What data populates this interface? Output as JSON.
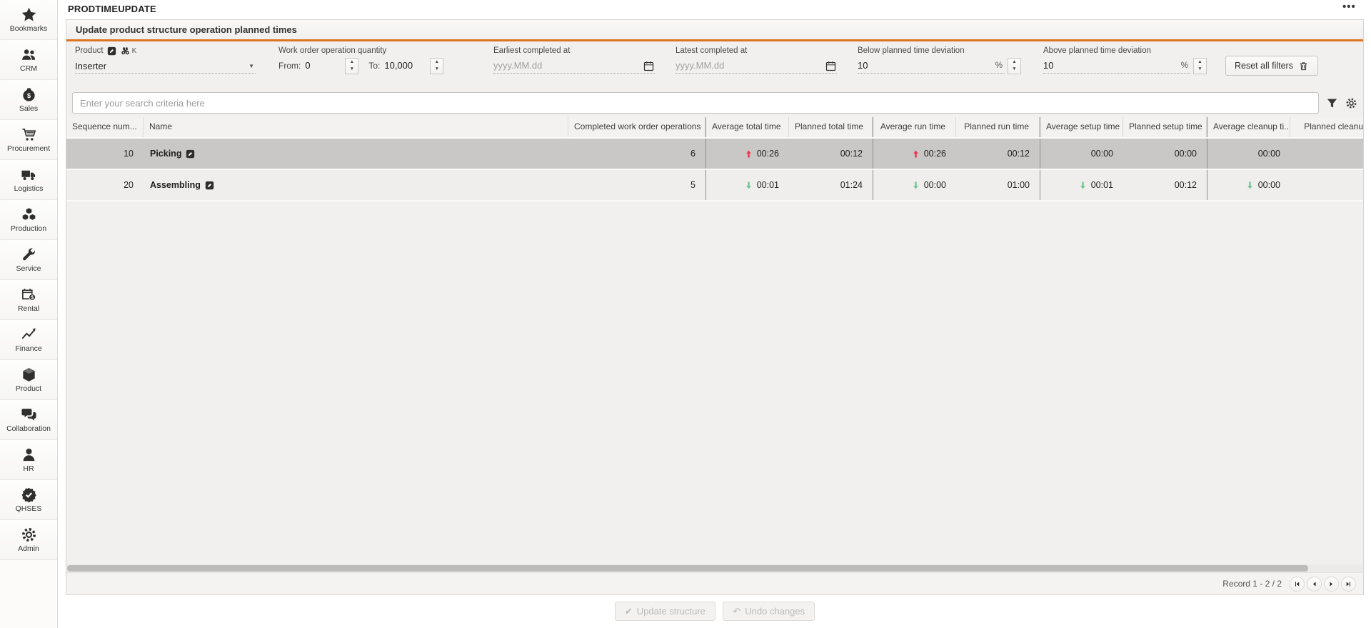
{
  "app": {
    "title": "PRODTIMEUPDATE",
    "window_menu": "•••"
  },
  "panel": {
    "title": "Update product structure operation planned times"
  },
  "sidebar": {
    "items": [
      {
        "label": "Bookmarks",
        "icon": "star"
      },
      {
        "label": "CRM",
        "icon": "people"
      },
      {
        "label": "Sales",
        "icon": "money-bag"
      },
      {
        "label": "Procurement",
        "icon": "cart"
      },
      {
        "label": "Logistics",
        "icon": "truck"
      },
      {
        "label": "Production",
        "icon": "cubes"
      },
      {
        "label": "Service",
        "icon": "wrench"
      },
      {
        "label": "Rental",
        "icon": "calendar-dollar"
      },
      {
        "label": "Finance",
        "icon": "chart-line"
      },
      {
        "label": "Product",
        "icon": "cube"
      },
      {
        "label": "Collaboration",
        "icon": "chat"
      },
      {
        "label": "HR",
        "icon": "person"
      },
      {
        "label": "QHSES",
        "icon": "badge-check"
      },
      {
        "label": "Admin",
        "icon": "gear"
      }
    ]
  },
  "filters": {
    "product": {
      "label": "Product",
      "shortcut": "K",
      "value": "Inserter"
    },
    "quantity": {
      "label": "Work order operation quantity",
      "from_label": "From:",
      "from_value": "0",
      "to_label": "To:",
      "to_value": "10,000"
    },
    "earliest": {
      "label": "Earliest completed at",
      "placeholder": "yyyy.MM.dd"
    },
    "latest": {
      "label": "Latest completed at",
      "placeholder": "yyyy.MM.dd"
    },
    "below_deviation": {
      "label": "Below planned time deviation",
      "value": "10",
      "unit": "%"
    },
    "above_deviation": {
      "label": "Above planned time deviation",
      "value": "10",
      "unit": "%"
    },
    "reset_label": "Reset all filters"
  },
  "search": {
    "placeholder": "Enter your search criteria here"
  },
  "table": {
    "columns": [
      "Sequence num...",
      "Name",
      "Completed work order operations",
      "Average total time",
      "Planned total time",
      "Average run time",
      "Planned run time",
      "Average setup time",
      "Planned setup time",
      "Average cleanup ti...",
      "Planned cleanu"
    ],
    "rows": [
      {
        "selected": true,
        "cells": [
          {
            "text": "10"
          },
          {
            "text": "Picking",
            "edit_icon": true
          },
          {
            "text": "6"
          },
          {
            "text": "00:26",
            "trend": "up"
          },
          {
            "text": "00:12"
          },
          {
            "text": "00:26",
            "trend": "up"
          },
          {
            "text": "00:12"
          },
          {
            "text": "00:00"
          },
          {
            "text": "00:00"
          },
          {
            "text": "00:00"
          },
          {
            "text": ""
          }
        ]
      },
      {
        "selected": false,
        "cells": [
          {
            "text": "20"
          },
          {
            "text": "Assembling",
            "edit_icon": true
          },
          {
            "text": "5"
          },
          {
            "text": "00:01",
            "trend": "down"
          },
          {
            "text": "01:24"
          },
          {
            "text": "00:00",
            "trend": "down"
          },
          {
            "text": "01:00"
          },
          {
            "text": "00:01",
            "trend": "down"
          },
          {
            "text": "00:12"
          },
          {
            "text": "00:00",
            "trend": "down"
          },
          {
            "text": ""
          }
        ]
      }
    ]
  },
  "footer": {
    "record_text": "Record 1 - 2 / 2",
    "pagination_icons": [
      "page-first",
      "page-prev",
      "page-next",
      "page-last"
    ]
  },
  "actions": {
    "update": "Update structure",
    "update_glyph": "✔",
    "undo": "Undo changes",
    "undo_glyph": "↶"
  },
  "colors": {
    "accent": "#dd7520",
    "above_trend": "#f0374f",
    "below_trend": "#74c795",
    "selected_row": "#c9c8c6"
  }
}
